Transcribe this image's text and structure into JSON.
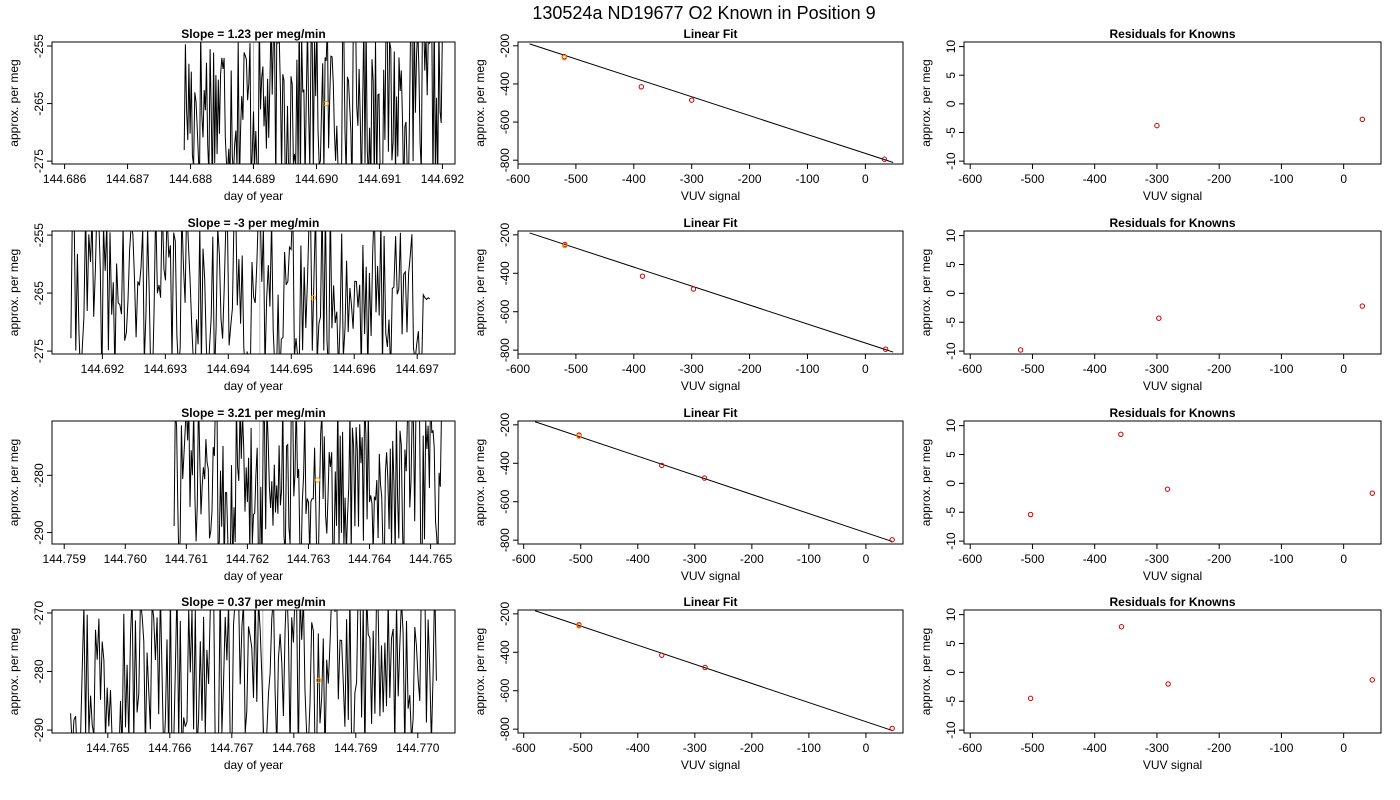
{
  "figure": {
    "title": "130524a     ND19677   O2 Known in Position  9",
    "colors": {
      "trace": "#000000",
      "frame": "#000000",
      "point": "#cc0000",
      "highlight": "#ff9900",
      "marker_line": "#bbbbbb"
    }
  },
  "chart_data": [
    {
      "type": "line",
      "row": 0,
      "col": 0,
      "title": "Slope =  1.23  per meg/min",
      "xlabel": "day of year",
      "ylabel": "approx. per meg",
      "xlim": [
        144.6858,
        144.6922
      ],
      "ylim": [
        -275.5,
        -254.3
      ],
      "xticks": [
        "144.686",
        "144.687",
        "144.688",
        "144.689",
        "144.690",
        "144.691",
        "144.692"
      ],
      "yticks": [
        "-255",
        "-265",
        "-275"
      ],
      "trace_x_start": 144.6879,
      "trace_x_end": 144.692,
      "trace_seed": 17,
      "marker_x": 144.689,
      "highlight": {
        "x": 144.69015,
        "y": -265
      }
    },
    {
      "type": "scatter",
      "row": 0,
      "col": 1,
      "title": "Linear Fit",
      "xlabel": "VUV signal",
      "ylabel": "approx. per meg",
      "xlim": [
        -600,
        65
      ],
      "ylim": [
        -820,
        -180
      ],
      "xticks": [
        "-600",
        "-500",
        "-400",
        "-300",
        "-200",
        "-100",
        "0"
      ],
      "yticks": [
        "-200",
        "-400",
        "-600",
        "-800"
      ],
      "points": [
        [
          -520,
          -257
        ],
        [
          -520,
          -262
        ],
        [
          -387,
          -415
        ],
        [
          -300,
          -485
        ],
        [
          33,
          -795
        ]
      ],
      "highlight": {
        "x": -520,
        "y": -262
      },
      "fit": [
        [
          -580,
          -190
        ],
        [
          48,
          -812
        ]
      ]
    },
    {
      "type": "scatter",
      "row": 0,
      "col": 2,
      "title": "Residuals for Knowns",
      "xlabel": "VUV signal",
      "ylabel": "approx. per meg",
      "xlim": [
        -610,
        60
      ],
      "ylim": [
        -10.5,
        10.8
      ],
      "xticks": [
        "-600",
        "-500",
        "-400",
        "-300",
        "-200",
        "-100",
        "0"
      ],
      "yticks": [
        "10",
        "5",
        "0",
        "-5",
        "-10"
      ],
      "points": [
        [
          -300,
          -3.8
        ],
        [
          30,
          -2.7
        ]
      ]
    },
    {
      "type": "line",
      "row": 1,
      "col": 0,
      "title": "Slope =  -3  per meg/min",
      "xlabel": "day of year",
      "ylabel": "approx. per meg",
      "xlim": [
        144.6912,
        144.6976
      ],
      "ylim": [
        -275.5,
        -254.3
      ],
      "xticks": [
        "144.692",
        "144.693",
        "144.694",
        "144.695",
        "144.696",
        "144.697"
      ],
      "yticks": [
        "-255",
        "-265",
        "-275"
      ],
      "trace_x_start": 144.6915,
      "trace_x_end": 144.6972,
      "trace_seed": 41,
      "marker_x": 144.6945,
      "highlight": {
        "x": 144.69535,
        "y": -265.8
      }
    },
    {
      "type": "scatter",
      "row": 1,
      "col": 1,
      "title": "Linear Fit",
      "xlabel": "VUV signal",
      "ylabel": "approx. per meg",
      "xlim": [
        -600,
        65
      ],
      "ylim": [
        -820,
        -180
      ],
      "xticks": [
        "-600",
        "-500",
        "-400",
        "-300",
        "-200",
        "-100",
        "0"
      ],
      "yticks": [
        "-200",
        "-400",
        "-600",
        "-800"
      ],
      "points": [
        [
          -519,
          -250
        ],
        [
          -519,
          -255
        ],
        [
          -385,
          -415
        ],
        [
          -297,
          -482
        ],
        [
          35,
          -795
        ]
      ],
      "highlight": {
        "x": -519,
        "y": -255
      },
      "fit": [
        [
          -580,
          -190
        ],
        [
          48,
          -810
        ]
      ]
    },
    {
      "type": "scatter",
      "row": 1,
      "col": 2,
      "title": "Residuals for Knowns",
      "xlabel": "VUV signal",
      "ylabel": "approx. per meg",
      "xlim": [
        -610,
        60
      ],
      "ylim": [
        -10.5,
        10.8
      ],
      "xticks": [
        "-600",
        "-500",
        "-400",
        "-300",
        "-200",
        "-100",
        "0"
      ],
      "yticks": [
        "10",
        "5",
        "0",
        "-5",
        "-10"
      ],
      "points": [
        [
          -519,
          -9.8
        ],
        [
          -297,
          -4.3
        ],
        [
          30,
          -2.2
        ]
      ]
    },
    {
      "type": "line",
      "row": 2,
      "col": 0,
      "title": "Slope =  3.21  per meg/min",
      "xlabel": "day of year",
      "ylabel": "approx. per meg",
      "xlim": [
        144.7588,
        144.7654
      ],
      "ylim": [
        -292,
        -270.5
      ],
      "xticks": [
        "144.759",
        "144.760",
        "144.761",
        "144.762",
        "144.763",
        "144.764",
        "144.765"
      ],
      "yticks": [
        "-280",
        "-290"
      ],
      "trace_x_start": 144.7608,
      "trace_x_end": 144.7652,
      "trace_seed": 73,
      "marker_x": 144.7622,
      "highlight": {
        "x": 144.76315,
        "y": -280.8
      }
    },
    {
      "type": "scatter",
      "row": 2,
      "col": 1,
      "title": "Linear Fit",
      "xlabel": "VUV signal",
      "ylabel": "approx. per meg",
      "xlim": [
        -610,
        65
      ],
      "ylim": [
        -820,
        -180
      ],
      "xticks": [
        "-600",
        "-500",
        "-400",
        "-300",
        "-200",
        "-100",
        "0"
      ],
      "yticks": [
        "-200",
        "-400",
        "-600",
        "-800"
      ],
      "points": [
        [
          -503,
          -253
        ],
        [
          -503,
          -258
        ],
        [
          -358,
          -411
        ],
        [
          -283,
          -477
        ],
        [
          46,
          -798
        ]
      ],
      "highlight": {
        "x": -503,
        "y": -258
      },
      "fit": [
        [
          -580,
          -184
        ],
        [
          46,
          -807
        ]
      ]
    },
    {
      "type": "scatter",
      "row": 2,
      "col": 2,
      "title": "Residuals for Knowns",
      "xlabel": "VUV signal",
      "ylabel": "approx. per meg",
      "xlim": [
        -610,
        60
      ],
      "ylim": [
        -10.5,
        10.8
      ],
      "xticks": [
        "-600",
        "-500",
        "-400",
        "-300",
        "-200",
        "-100",
        "0"
      ],
      "yticks": [
        "10",
        "5",
        "0",
        "-5",
        "-10"
      ],
      "points": [
        [
          -503,
          -5.4
        ],
        [
          -358,
          8.5
        ],
        [
          -283,
          -1.0
        ],
        [
          46,
          -1.7
        ]
      ]
    },
    {
      "type": "line",
      "row": 3,
      "col": 0,
      "title": "Slope =  0.37  per meg/min",
      "xlabel": "day of year",
      "ylabel": "approx. per meg",
      "xlim": [
        144.7641,
        144.7706
      ],
      "ylim": [
        -290.5,
        -269.5
      ],
      "xticks": [
        "144.765",
        "144.766",
        "144.767",
        "144.768",
        "144.769",
        "144.770"
      ],
      "yticks": [
        "-270",
        "-280",
        "-290"
      ],
      "trace_x_start": 144.7644,
      "trace_x_end": 144.7703,
      "trace_seed": 97,
      "marker_x": 144.7675,
      "highlight": {
        "x": 144.7684,
        "y": -281.5
      }
    },
    {
      "type": "scatter",
      "row": 3,
      "col": 1,
      "title": "Linear Fit",
      "xlabel": "VUV signal",
      "ylabel": "approx. per meg",
      "xlim": [
        -610,
        65
      ],
      "ylim": [
        -820,
        -180
      ],
      "xticks": [
        "-600",
        "-500",
        "-400",
        "-300",
        "-200",
        "-100",
        "0"
      ],
      "yticks": [
        "-200",
        "-400",
        "-600",
        "-800"
      ],
      "points": [
        [
          -503,
          -257
        ],
        [
          -503,
          -262
        ],
        [
          -358,
          -415
        ],
        [
          -282,
          -479
        ],
        [
          46,
          -796
        ]
      ],
      "highlight": {
        "x": -503,
        "y": -262
      },
      "fit": [
        [
          -580,
          -184
        ],
        [
          46,
          -807
        ]
      ]
    },
    {
      "type": "scatter",
      "row": 3,
      "col": 2,
      "title": "Residuals for Knowns",
      "xlabel": "VUV signal",
      "ylabel": "approx. per meg",
      "xlim": [
        -610,
        60
      ],
      "ylim": [
        -10.5,
        10.8
      ],
      "xticks": [
        "-600",
        "-500",
        "-400",
        "-300",
        "-200",
        "-100",
        "0"
      ],
      "yticks": [
        "10",
        "5",
        "0",
        "-5",
        "-10"
      ],
      "points": [
        [
          -503,
          -4.5
        ],
        [
          -357,
          7.9
        ],
        [
          -282,
          -2.0
        ],
        [
          46,
          -1.3
        ]
      ]
    }
  ]
}
